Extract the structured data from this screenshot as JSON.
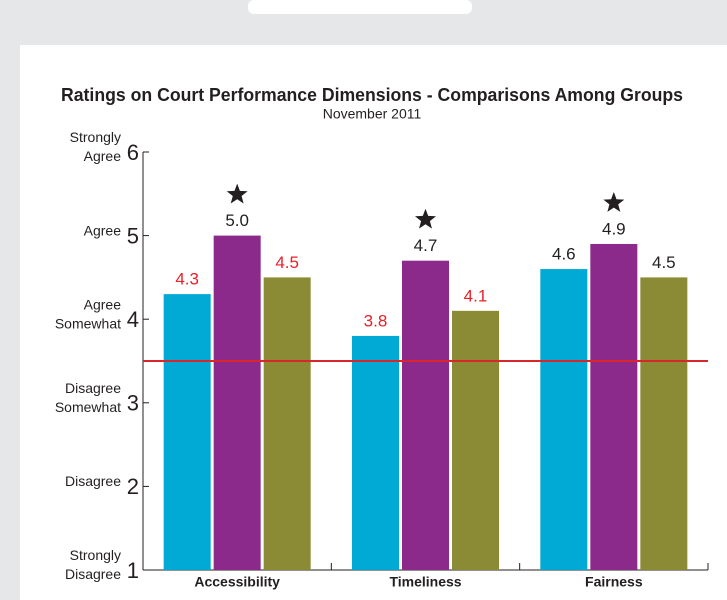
{
  "chart_data": {
    "type": "bar",
    "title": "Ratings on Court Performance Dimensions - Comparisons Among Groups",
    "subtitle": "November 2011",
    "categories": [
      "Accessibility",
      "Timeliness",
      "Fairness"
    ],
    "series": [
      {
        "color": "#00aad4",
        "values": [
          4.3,
          3.8,
          4.6
        ],
        "label_colors": [
          "#e8202a",
          "#e8202a",
          "#231f20"
        ]
      },
      {
        "color": "#8b2a8b",
        "values": [
          5.0,
          4.7,
          4.9
        ],
        "value_labels": [
          "5.0",
          "4.7",
          "4.9"
        ],
        "label_colors": [
          "#231f20",
          "#231f20",
          "#231f20"
        ],
        "starred": [
          true,
          true,
          true
        ]
      },
      {
        "color": "#8b8b35",
        "values": [
          4.5,
          4.1,
          4.5
        ],
        "label_colors": [
          "#e8202a",
          "#e8202a",
          "#231f20"
        ]
      }
    ],
    "ylim": [
      1,
      6
    ],
    "yticks": [
      1,
      2,
      3,
      4,
      5,
      6
    ],
    "ytick_descriptions": [
      [
        "Strongly",
        "Disagree"
      ],
      [
        "Disagree"
      ],
      [
        "Disagree",
        "Somewhat"
      ],
      [
        "Agree",
        "Somewhat"
      ],
      [
        "Agree"
      ],
      [
        "Strongly",
        "Agree"
      ]
    ],
    "reference_line": 3.5,
    "reference_color": "#d9262c"
  }
}
